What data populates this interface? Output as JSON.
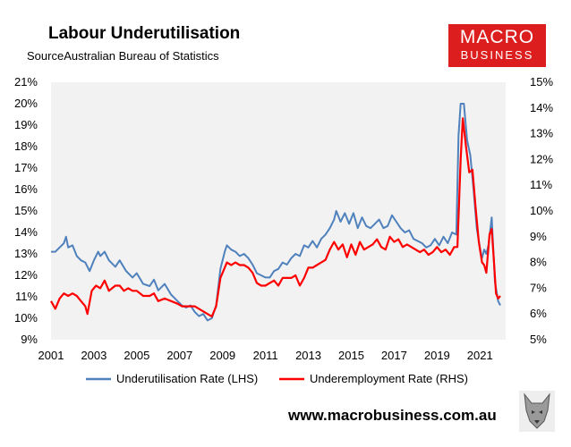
{
  "header": {
    "title": "Labour Underutilisation",
    "source": "SourceAustralian Bureau of Statistics"
  },
  "logo": {
    "line1": "MACRO",
    "line2": "BUSINESS",
    "color": "#dc1e1e"
  },
  "footer": {
    "url": "www.macrobusiness.com.au"
  },
  "chart_data": {
    "type": "line",
    "title": "Labour Underutilisation",
    "grid": false,
    "legend_position": "bottom",
    "x_axis": {
      "range": [
        2001,
        2022.2
      ],
      "ticks": [
        "2001",
        "2003",
        "2005",
        "2007",
        "2009",
        "2011",
        "2013",
        "2015",
        "2017",
        "2019",
        "2021"
      ]
    },
    "y_left": {
      "range": [
        9,
        21
      ],
      "ticks": [
        "9%",
        "10%",
        "11%",
        "12%",
        "13%",
        "14%",
        "15%",
        "16%",
        "17%",
        "18%",
        "19%",
        "20%",
        "21%"
      ]
    },
    "y_right": {
      "range": [
        5,
        15
      ],
      "ticks": [
        "5%",
        "6%",
        "7%",
        "8%",
        "9%",
        "10%",
        "11%",
        "12%",
        "13%",
        "14%",
        "15%"
      ]
    },
    "series": [
      {
        "name": "Underutilisation Rate (LHS)",
        "axis": "left",
        "color": "#4f81bd",
        "points": [
          [
            2001.0,
            13.1
          ],
          [
            2001.2,
            13.1
          ],
          [
            2001.5,
            13.4
          ],
          [
            2001.6,
            13.5
          ],
          [
            2001.7,
            13.8
          ],
          [
            2001.8,
            13.3
          ],
          [
            2002.0,
            13.4
          ],
          [
            2002.2,
            12.9
          ],
          [
            2002.4,
            12.7
          ],
          [
            2002.6,
            12.6
          ],
          [
            2002.8,
            12.2
          ],
          [
            2003.0,
            12.7
          ],
          [
            2003.2,
            13.1
          ],
          [
            2003.3,
            12.9
          ],
          [
            2003.5,
            13.1
          ],
          [
            2003.7,
            12.7
          ],
          [
            2004.0,
            12.4
          ],
          [
            2004.2,
            12.7
          ],
          [
            2004.5,
            12.2
          ],
          [
            2004.8,
            11.9
          ],
          [
            2005.0,
            12.1
          ],
          [
            2005.3,
            11.6
          ],
          [
            2005.6,
            11.5
          ],
          [
            2005.8,
            11.8
          ],
          [
            2006.0,
            11.3
          ],
          [
            2006.3,
            11.6
          ],
          [
            2006.6,
            11.1
          ],
          [
            2006.9,
            10.8
          ],
          [
            2007.1,
            10.6
          ],
          [
            2007.3,
            10.5
          ],
          [
            2007.5,
            10.6
          ],
          [
            2007.7,
            10.3
          ],
          [
            2007.9,
            10.1
          ],
          [
            2008.1,
            10.2
          ],
          [
            2008.3,
            9.9
          ],
          [
            2008.5,
            10.0
          ],
          [
            2008.7,
            10.6
          ],
          [
            2008.9,
            12.3
          ],
          [
            2009.1,
            13.1
          ],
          [
            2009.2,
            13.4
          ],
          [
            2009.4,
            13.2
          ],
          [
            2009.6,
            13.1
          ],
          [
            2009.8,
            12.9
          ],
          [
            2010.0,
            13.0
          ],
          [
            2010.2,
            12.8
          ],
          [
            2010.4,
            12.5
          ],
          [
            2010.6,
            12.1
          ],
          [
            2010.8,
            12.0
          ],
          [
            2011.0,
            11.9
          ],
          [
            2011.2,
            11.9
          ],
          [
            2011.4,
            12.2
          ],
          [
            2011.6,
            12.3
          ],
          [
            2011.8,
            12.6
          ],
          [
            2012.0,
            12.5
          ],
          [
            2012.2,
            12.8
          ],
          [
            2012.4,
            13.0
          ],
          [
            2012.6,
            12.9
          ],
          [
            2012.8,
            13.4
          ],
          [
            2013.0,
            13.3
          ],
          [
            2013.2,
            13.6
          ],
          [
            2013.4,
            13.3
          ],
          [
            2013.6,
            13.7
          ],
          [
            2013.8,
            13.9
          ],
          [
            2014.0,
            14.2
          ],
          [
            2014.2,
            14.6
          ],
          [
            2014.3,
            15.0
          ],
          [
            2014.5,
            14.5
          ],
          [
            2014.7,
            14.9
          ],
          [
            2014.9,
            14.4
          ],
          [
            2015.1,
            14.9
          ],
          [
            2015.3,
            14.2
          ],
          [
            2015.5,
            14.7
          ],
          [
            2015.7,
            14.3
          ],
          [
            2015.9,
            14.2
          ],
          [
            2016.1,
            14.4
          ],
          [
            2016.3,
            14.6
          ],
          [
            2016.5,
            14.2
          ],
          [
            2016.7,
            14.3
          ],
          [
            2016.9,
            14.8
          ],
          [
            2017.1,
            14.5
          ],
          [
            2017.3,
            14.2
          ],
          [
            2017.5,
            14.0
          ],
          [
            2017.7,
            14.1
          ],
          [
            2017.9,
            13.7
          ],
          [
            2018.1,
            13.6
          ],
          [
            2018.3,
            13.5
          ],
          [
            2018.5,
            13.3
          ],
          [
            2018.7,
            13.4
          ],
          [
            2018.9,
            13.7
          ],
          [
            2019.1,
            13.4
          ],
          [
            2019.3,
            13.8
          ],
          [
            2019.5,
            13.5
          ],
          [
            2019.7,
            14.0
          ],
          [
            2019.9,
            13.9
          ],
          [
            2020.0,
            18.5
          ],
          [
            2020.1,
            20.0
          ],
          [
            2020.25,
            20.0
          ],
          [
            2020.4,
            18.3
          ],
          [
            2020.55,
            17.6
          ],
          [
            2020.7,
            16.0
          ],
          [
            2020.85,
            14.2
          ],
          [
            2021.0,
            13.3
          ],
          [
            2021.1,
            12.8
          ],
          [
            2021.2,
            13.2
          ],
          [
            2021.3,
            13.0
          ],
          [
            2021.4,
            13.4
          ],
          [
            2021.55,
            14.7
          ],
          [
            2021.7,
            11.7
          ],
          [
            2021.85,
            10.8
          ],
          [
            2021.95,
            10.6
          ]
        ]
      },
      {
        "name": "Underemployment Rate (RHS)",
        "axis": "right",
        "color": "#ff0000",
        "points": [
          [
            2001.0,
            6.5
          ],
          [
            2001.2,
            6.2
          ],
          [
            2001.4,
            6.6
          ],
          [
            2001.6,
            6.8
          ],
          [
            2001.8,
            6.7
          ],
          [
            2002.0,
            6.8
          ],
          [
            2002.2,
            6.7
          ],
          [
            2002.4,
            6.5
          ],
          [
            2002.6,
            6.3
          ],
          [
            2002.7,
            6.0
          ],
          [
            2002.9,
            6.9
          ],
          [
            2003.1,
            7.1
          ],
          [
            2003.3,
            7.0
          ],
          [
            2003.5,
            7.3
          ],
          [
            2003.7,
            6.9
          ],
          [
            2004.0,
            7.1
          ],
          [
            2004.2,
            7.1
          ],
          [
            2004.4,
            6.9
          ],
          [
            2004.6,
            7.0
          ],
          [
            2004.8,
            6.9
          ],
          [
            2005.0,
            6.9
          ],
          [
            2005.3,
            6.7
          ],
          [
            2005.6,
            6.7
          ],
          [
            2005.8,
            6.8
          ],
          [
            2006.0,
            6.5
          ],
          [
            2006.3,
            6.6
          ],
          [
            2006.6,
            6.5
          ],
          [
            2006.9,
            6.4
          ],
          [
            2007.1,
            6.3
          ],
          [
            2007.3,
            6.3
          ],
          [
            2007.5,
            6.3
          ],
          [
            2007.7,
            6.3
          ],
          [
            2007.9,
            6.2
          ],
          [
            2008.1,
            6.1
          ],
          [
            2008.3,
            6.0
          ],
          [
            2008.5,
            5.9
          ],
          [
            2008.7,
            6.3
          ],
          [
            2008.9,
            7.4
          ],
          [
            2009.1,
            7.8
          ],
          [
            2009.2,
            8.0
          ],
          [
            2009.4,
            7.9
          ],
          [
            2009.6,
            8.0
          ],
          [
            2009.8,
            7.9
          ],
          [
            2010.0,
            7.9
          ],
          [
            2010.2,
            7.8
          ],
          [
            2010.4,
            7.6
          ],
          [
            2010.6,
            7.2
          ],
          [
            2010.8,
            7.1
          ],
          [
            2011.0,
            7.1
          ],
          [
            2011.2,
            7.2
          ],
          [
            2011.4,
            7.3
          ],
          [
            2011.6,
            7.1
          ],
          [
            2011.8,
            7.4
          ],
          [
            2012.0,
            7.4
          ],
          [
            2012.2,
            7.4
          ],
          [
            2012.4,
            7.5
          ],
          [
            2012.6,
            7.1
          ],
          [
            2012.8,
            7.4
          ],
          [
            2013.0,
            7.8
          ],
          [
            2013.2,
            7.8
          ],
          [
            2013.4,
            7.9
          ],
          [
            2013.6,
            8.0
          ],
          [
            2013.8,
            8.1
          ],
          [
            2014.0,
            8.5
          ],
          [
            2014.2,
            8.8
          ],
          [
            2014.4,
            8.5
          ],
          [
            2014.6,
            8.7
          ],
          [
            2014.8,
            8.2
          ],
          [
            2015.0,
            8.7
          ],
          [
            2015.2,
            8.3
          ],
          [
            2015.4,
            8.8
          ],
          [
            2015.6,
            8.5
          ],
          [
            2015.8,
            8.6
          ],
          [
            2016.0,
            8.7
          ],
          [
            2016.2,
            8.9
          ],
          [
            2016.4,
            8.6
          ],
          [
            2016.6,
            8.5
          ],
          [
            2016.8,
            9.0
          ],
          [
            2017.0,
            8.8
          ],
          [
            2017.2,
            8.9
          ],
          [
            2017.4,
            8.6
          ],
          [
            2017.6,
            8.7
          ],
          [
            2017.8,
            8.6
          ],
          [
            2018.0,
            8.5
          ],
          [
            2018.2,
            8.4
          ],
          [
            2018.4,
            8.5
          ],
          [
            2018.6,
            8.3
          ],
          [
            2018.8,
            8.4
          ],
          [
            2019.0,
            8.6
          ],
          [
            2019.2,
            8.4
          ],
          [
            2019.4,
            8.5
          ],
          [
            2019.6,
            8.3
          ],
          [
            2019.8,
            8.6
          ],
          [
            2019.95,
            8.6
          ],
          [
            2020.1,
            12.0
          ],
          [
            2020.2,
            13.6
          ],
          [
            2020.35,
            12.5
          ],
          [
            2020.5,
            11.5
          ],
          [
            2020.65,
            11.6
          ],
          [
            2020.8,
            10.1
          ],
          [
            2020.95,
            8.8
          ],
          [
            2021.1,
            8.0
          ],
          [
            2021.2,
            7.9
          ],
          [
            2021.3,
            7.6
          ],
          [
            2021.45,
            9.1
          ],
          [
            2021.55,
            9.3
          ],
          [
            2021.65,
            8.1
          ],
          [
            2021.75,
            6.8
          ],
          [
            2021.85,
            6.6
          ],
          [
            2021.95,
            6.7
          ]
        ]
      }
    ]
  }
}
